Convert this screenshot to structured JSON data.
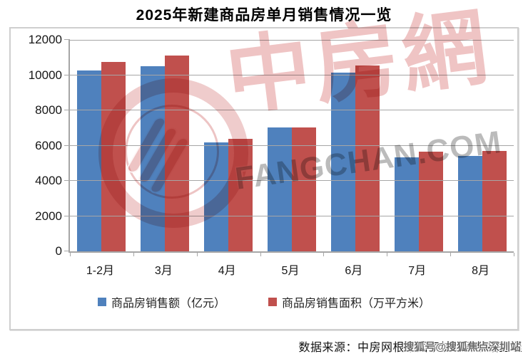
{
  "page": {
    "title": "2025年新建商品房单月销售情况一览"
  },
  "chart_data": {
    "type": "bar",
    "title": "2025年新建商品房单月销售情况一览",
    "categories": [
      "1-2月",
      "3月",
      "4月",
      "5月",
      "6月",
      "7月",
      "8月"
    ],
    "series": [
      {
        "name": "商品房销售额（亿元）",
        "color": "#4F81BD",
        "values": [
          10250,
          10500,
          6200,
          7050,
          10150,
          5350,
          5400
        ]
      },
      {
        "name": "商品房销售面积（万平方米）",
        "color": "#C0504D",
        "values": [
          10750,
          11100,
          6400,
          7050,
          10550,
          5650,
          5700
        ]
      }
    ],
    "xlabel": "",
    "ylabel": "",
    "ylim": [
      0,
      12000
    ],
    "yticks": [
      0,
      2000,
      4000,
      6000,
      8000,
      10000,
      12000
    ],
    "grid": true,
    "legend_position": "bottom-inside"
  },
  "watermark": {
    "logo_cn": "中房網",
    "logo_en": "FANGCHAN.COM"
  },
  "footer": {
    "source": "数据来源：中房网根据国家统计局数据整理",
    "overlay": "搜狐号@搜狐焦点深圳站"
  }
}
